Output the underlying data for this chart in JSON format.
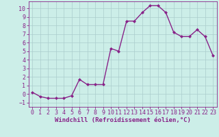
{
  "x": [
    0,
    1,
    2,
    3,
    4,
    5,
    6,
    7,
    8,
    9,
    10,
    11,
    12,
    13,
    14,
    15,
    16,
    17,
    18,
    19,
    20,
    21,
    22,
    23
  ],
  "y": [
    0.2,
    -0.3,
    -0.5,
    -0.5,
    -0.5,
    -0.2,
    1.7,
    1.1,
    1.1,
    1.1,
    5.3,
    5.0,
    8.5,
    8.5,
    9.5,
    10.3,
    10.3,
    9.5,
    7.2,
    6.7,
    6.7,
    7.5,
    6.7,
    4.5
  ],
  "line_color": "#882288",
  "marker": "D",
  "marker_size": 2.0,
  "bg_color": "#cceee8",
  "grid_color": "#aacccc",
  "xlabel": "Windchill (Refroidissement éolien,°C)",
  "xlabel_fontsize": 6.5,
  "tick_fontsize": 6.0,
  "xlim": [
    -0.5,
    23.5
  ],
  "ylim": [
    -1.5,
    10.8
  ],
  "yticks": [
    -1,
    0,
    1,
    2,
    3,
    4,
    5,
    6,
    7,
    8,
    9,
    10
  ],
  "xticks": [
    0,
    1,
    2,
    3,
    4,
    5,
    6,
    7,
    8,
    9,
    10,
    11,
    12,
    13,
    14,
    15,
    16,
    17,
    18,
    19,
    20,
    21,
    22,
    23
  ],
  "line_width": 1.0
}
